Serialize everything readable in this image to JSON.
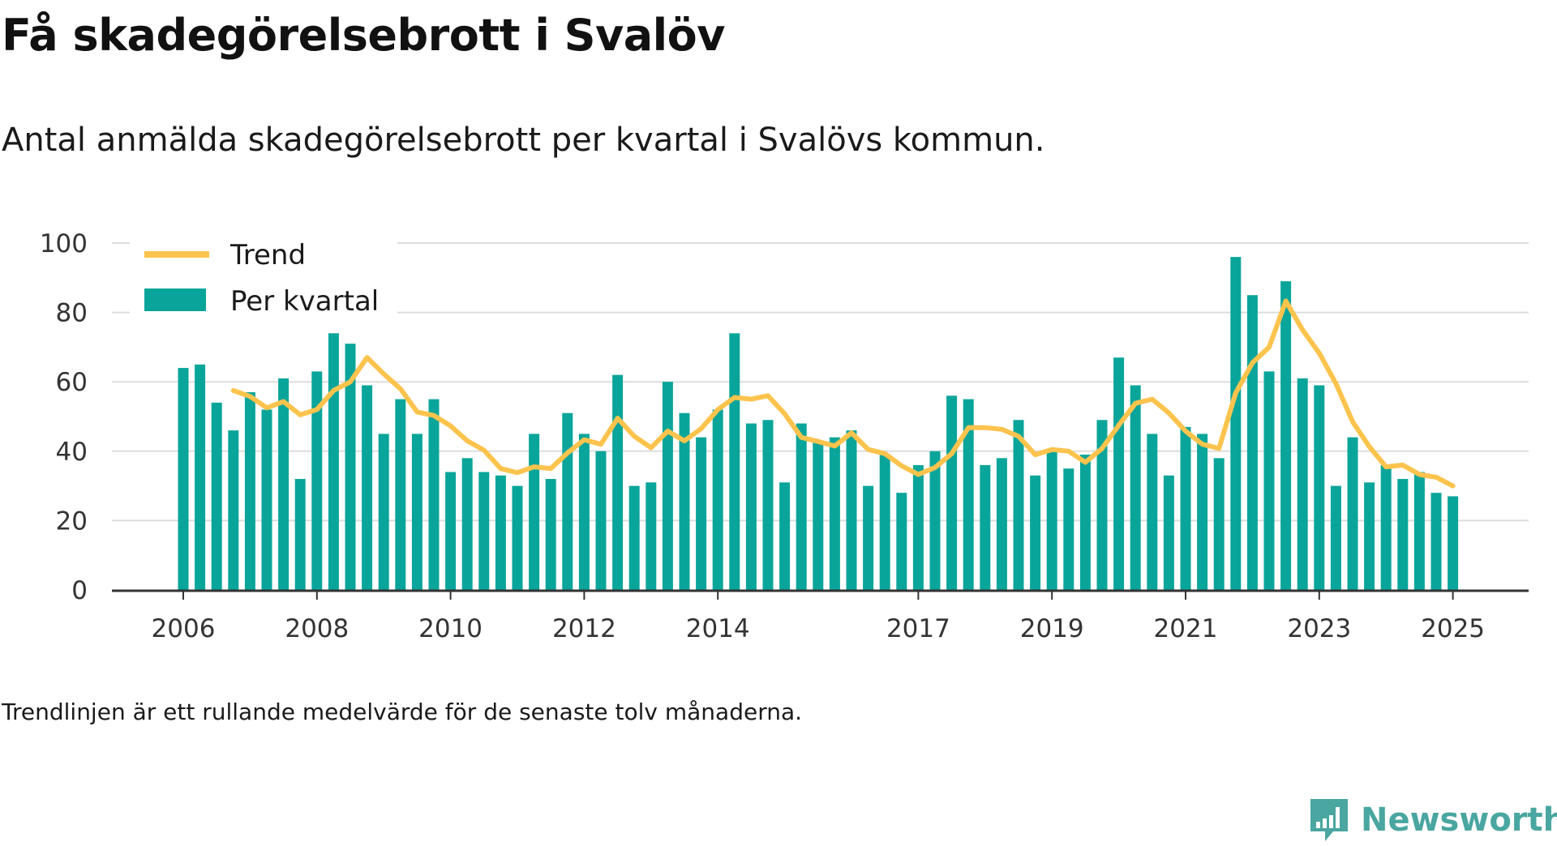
{
  "header": {
    "title": "Få skadegörelsebrott i Svalöv",
    "subtitle": "Antal anmälda skadegörelsebrott per kvartal i Svalövs kommun."
  },
  "footnote": "Trendlinjen är ett rullande medelvärde för de senaste tolv månaderna.",
  "brand": {
    "name": "Newsworthy",
    "color": "#49a6a0",
    "icon": "newsworthy-logo-icon"
  },
  "chart_data": {
    "type": "bar",
    "title": "",
    "xlabel": "",
    "ylabel": "",
    "ylim": [
      0,
      100
    ],
    "yticks": [
      0,
      20,
      40,
      60,
      80,
      100
    ],
    "xtick_labels": [
      "2006",
      "2008",
      "2010",
      "2012",
      "2014",
      "2017",
      "2019",
      "2021",
      "2023",
      "2025"
    ],
    "grid": true,
    "legend": "top-left",
    "colors": {
      "bars": "#0aa59a",
      "trend": "#fcc34d",
      "grid": "#dddddd",
      "axis": "#333333"
    },
    "series": [
      {
        "name": "Per kvartal",
        "type": "bar",
        "x": [
          "2006-Q1",
          "2006-Q2",
          "2006-Q3",
          "2006-Q4",
          "2007-Q1",
          "2007-Q2",
          "2007-Q3",
          "2007-Q4",
          "2008-Q1",
          "2008-Q2",
          "2008-Q3",
          "2008-Q4",
          "2009-Q1",
          "2009-Q2",
          "2009-Q3",
          "2009-Q4",
          "2010-Q1",
          "2010-Q2",
          "2010-Q3",
          "2010-Q4",
          "2011-Q1",
          "2011-Q2",
          "2011-Q3",
          "2011-Q4",
          "2012-Q1",
          "2012-Q2",
          "2012-Q3",
          "2012-Q4",
          "2013-Q1",
          "2013-Q2",
          "2013-Q3",
          "2013-Q4",
          "2014-Q1",
          "2014-Q2",
          "2014-Q3",
          "2014-Q4",
          "2015-Q1",
          "2015-Q2",
          "2015-Q3",
          "2015-Q4",
          "2016-Q1",
          "2016-Q2",
          "2016-Q3",
          "2016-Q4",
          "2017-Q1",
          "2017-Q2",
          "2017-Q3",
          "2017-Q4",
          "2018-Q1",
          "2018-Q2",
          "2018-Q3",
          "2018-Q4",
          "2019-Q1",
          "2019-Q2",
          "2019-Q3",
          "2019-Q4",
          "2020-Q1",
          "2020-Q2",
          "2020-Q3",
          "2020-Q4",
          "2021-Q1",
          "2021-Q2",
          "2021-Q3",
          "2021-Q4",
          "2022-Q1",
          "2022-Q2",
          "2022-Q3",
          "2022-Q4",
          "2023-Q1",
          "2023-Q2",
          "2023-Q3",
          "2023-Q4",
          "2024-Q1",
          "2024-Q2",
          "2024-Q3",
          "2024-Q4",
          "2025-Q1"
        ],
        "values": [
          64,
          65,
          54,
          46,
          57,
          52,
          61,
          32,
          63,
          74,
          71,
          59,
          45,
          55,
          45,
          55,
          34,
          38,
          34,
          33,
          30,
          45,
          32,
          51,
          45,
          40,
          62,
          30,
          31,
          60,
          51,
          44,
          52,
          74,
          48,
          49,
          31,
          48,
          43,
          44,
          46,
          30,
          39,
          28,
          36,
          40,
          56,
          55,
          36,
          38,
          49,
          33,
          40,
          35,
          39,
          49,
          67,
          59,
          45,
          33,
          47,
          45,
          38,
          96,
          85,
          63,
          89,
          61,
          59,
          30,
          44,
          31,
          36,
          32,
          34,
          28,
          27
        ]
      },
      {
        "name": "Trend",
        "type": "line",
        "x": [
          "2006-Q4",
          "2007-Q1",
          "2007-Q2",
          "2007-Q3",
          "2007-Q4",
          "2008-Q1",
          "2008-Q2",
          "2008-Q3",
          "2008-Q4",
          "2009-Q1",
          "2009-Q2",
          "2009-Q3",
          "2009-Q4",
          "2010-Q1",
          "2010-Q2",
          "2010-Q3",
          "2010-Q4",
          "2011-Q1",
          "2011-Q2",
          "2011-Q3",
          "2011-Q4",
          "2012-Q1",
          "2012-Q2",
          "2012-Q3",
          "2012-Q4",
          "2013-Q1",
          "2013-Q2",
          "2013-Q3",
          "2013-Q4",
          "2014-Q1",
          "2014-Q2",
          "2014-Q3",
          "2014-Q4",
          "2015-Q1",
          "2015-Q2",
          "2015-Q3",
          "2015-Q4",
          "2016-Q1",
          "2016-Q2",
          "2016-Q3",
          "2016-Q4",
          "2017-Q1",
          "2017-Q2",
          "2017-Q3",
          "2017-Q4",
          "2018-Q1",
          "2018-Q2",
          "2018-Q3",
          "2018-Q4",
          "2019-Q1",
          "2019-Q2",
          "2019-Q3",
          "2019-Q4",
          "2020-Q1",
          "2020-Q2",
          "2020-Q3",
          "2020-Q4",
          "2021-Q1",
          "2021-Q2",
          "2021-Q3",
          "2021-Q4",
          "2022-Q1",
          "2022-Q2",
          "2022-Q3",
          "2022-Q4",
          "2023-Q1",
          "2023-Q2",
          "2023-Q3",
          "2023-Q4",
          "2024-Q1",
          "2024-Q2",
          "2024-Q3",
          "2024-Q4",
          "2025-Q1"
        ],
        "values": [
          57.5,
          55.8,
          52.5,
          54.3,
          50.5,
          52.0,
          57.5,
          60.0,
          67.0,
          62.3,
          58.0,
          51.3,
          50.3,
          47.3,
          43.0,
          40.3,
          35.0,
          33.8,
          35.5,
          35.0,
          39.5,
          43.3,
          42.0,
          49.5,
          44.3,
          41.0,
          45.8,
          43.0,
          46.5,
          52.0,
          55.5,
          55.0,
          56.0,
          50.8,
          44.0,
          42.8,
          41.5,
          45.3,
          40.5,
          39.3,
          35.8,
          33.3,
          35.3,
          39.3,
          46.8,
          46.8,
          46.3,
          44.3,
          39.0,
          40.5,
          40.0,
          36.8,
          40.8,
          47.5,
          53.8,
          55.0,
          51.0,
          45.8,
          42.0,
          40.8,
          56.8,
          65.5,
          70.0,
          83.3,
          75.0,
          68.3,
          59.5,
          48.5,
          41.3,
          35.5,
          36.0,
          33.3,
          32.5,
          30.0
        ]
      }
    ]
  }
}
